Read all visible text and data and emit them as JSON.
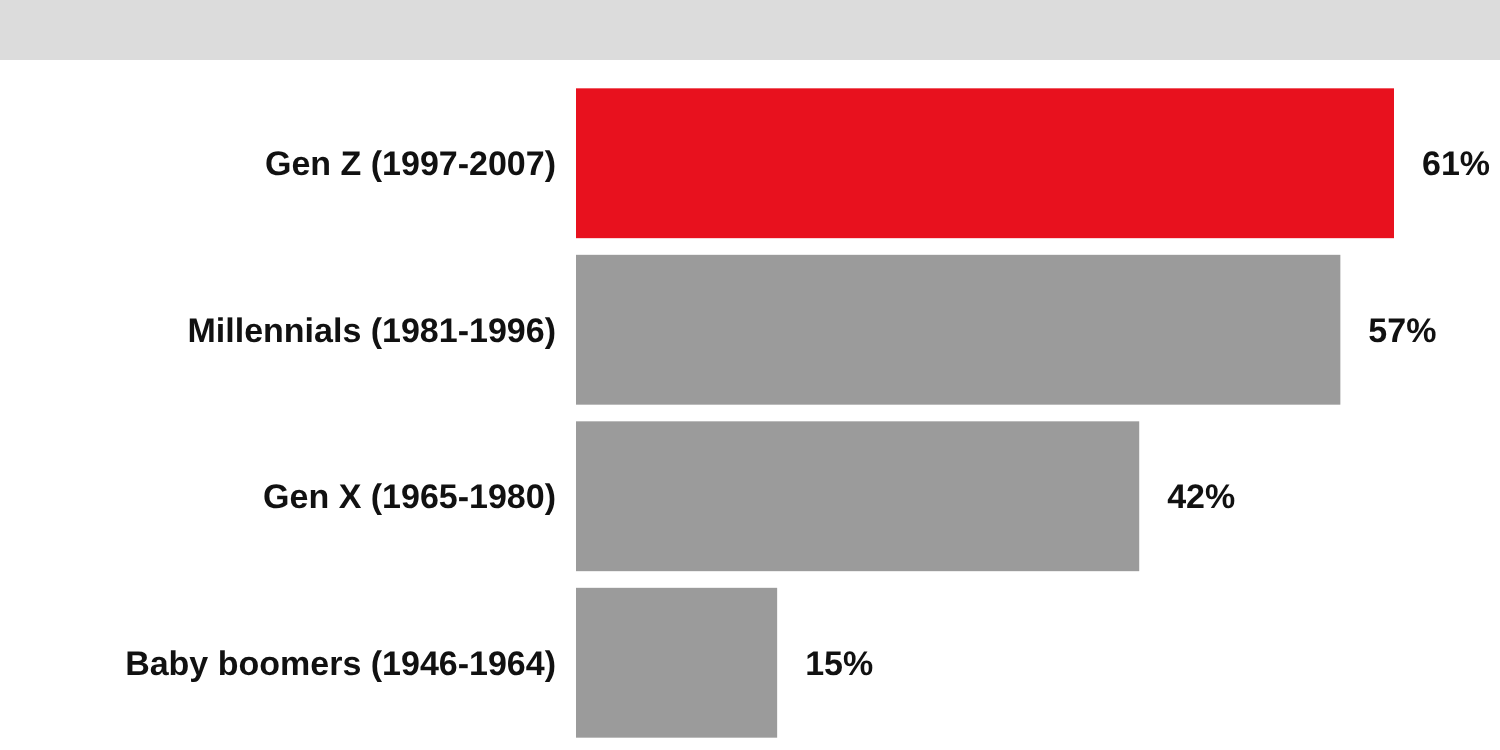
{
  "chart_data": {
    "type": "bar",
    "orientation": "horizontal",
    "categories": [
      "Gen Z (1997-2007)",
      "Millennials (1981-1996)",
      "Gen X (1965-1980)",
      "Baby boomers (1946-1964)"
    ],
    "values": [
      61,
      57,
      42,
      15
    ],
    "colors": [
      "#e8111e",
      "#9b9b9b",
      "#9b9b9b",
      "#9b9b9b"
    ],
    "value_labels": [
      "61%",
      "57%",
      "42%",
      "15%"
    ]
  }
}
